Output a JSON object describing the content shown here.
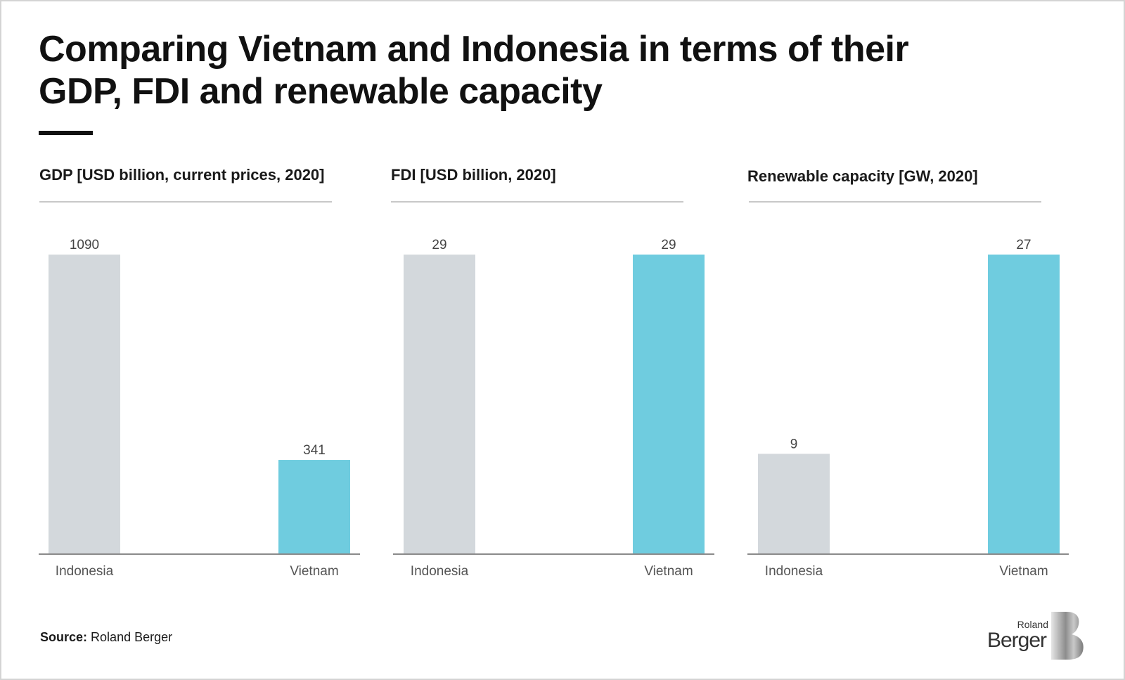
{
  "title": "Comparing Vietnam and Indonesia in terms of their GDP, FDI and renewable capacity",
  "source_label": "Source:",
  "source_text": "Roland Berger",
  "logo": {
    "line1": "Roland",
    "line2": "Berger",
    "mark": "B"
  },
  "colors": {
    "Indonesia": "#d3d8dc",
    "Vietnam": "#6fccdf",
    "axis": "#8a8a8a"
  },
  "chart_data": [
    {
      "type": "bar",
      "title": "GDP [USD billion, current prices, 2020]",
      "categories": [
        "Indonesia",
        "Vietnam"
      ],
      "values": [
        1090,
        341
      ],
      "ylim": [
        0,
        1090
      ]
    },
    {
      "type": "bar",
      "title": "FDI [USD billion, 2020]",
      "categories": [
        "Indonesia",
        "Vietnam"
      ],
      "values": [
        29,
        29
      ],
      "ylim": [
        0,
        29
      ]
    },
    {
      "type": "bar",
      "title": "Renewable capacity [GW, 2020]",
      "categories": [
        "Indonesia",
        "Vietnam"
      ],
      "values": [
        9,
        27
      ],
      "ylim": [
        0,
        27
      ]
    }
  ]
}
